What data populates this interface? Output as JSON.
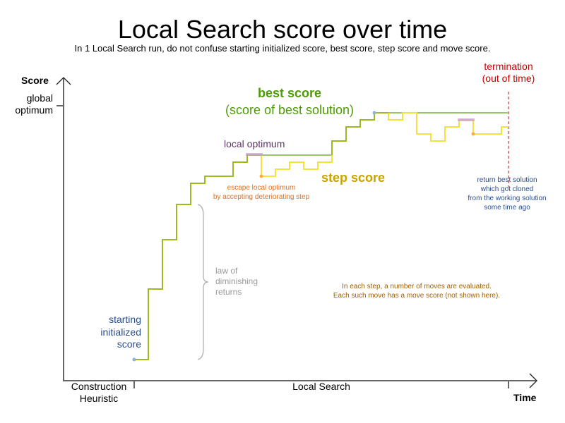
{
  "title": "Local Search score over time",
  "subtitle": "In 1 Local Search run, do not confuse starting initialized score, best score, step score and move score.",
  "axes": {
    "y_label": "Score",
    "x_label": "Time",
    "y_tick": [
      "global",
      "optimum"
    ],
    "x_phase_1": [
      "Construction",
      "Heuristic"
    ],
    "x_phase_2": "Local Search"
  },
  "labels": {
    "best_score": "best score",
    "best_score_sub": "(score of best solution)",
    "step_score": "step score",
    "local_optimum": "local optimum",
    "escape": [
      "escape local optimum",
      "by accepting deteriorating step"
    ],
    "diminishing": [
      "law of",
      "diminishing",
      "returns"
    ],
    "starting": [
      "starting",
      "initialized",
      "score"
    ],
    "termination": [
      "termination",
      "(out of time)"
    ],
    "return_best": [
      "return best solution",
      "which got cloned",
      "from the working solution",
      "some time ago"
    ],
    "moves": [
      "In each step, a number of moves are evaluated.",
      "Each such move has a move score (not shown here)."
    ]
  },
  "colors": {
    "best": "#9bbb1e",
    "best_line": "#99c66b",
    "step": "#f5e23b",
    "title_best": "#4e9a06",
    "step_label": "#c8a400",
    "local_optimum": "#5c3566",
    "escape": "#e07020",
    "starting": "#2a4d8f",
    "termination": "#cc0000",
    "moves": "#a06000"
  }
}
